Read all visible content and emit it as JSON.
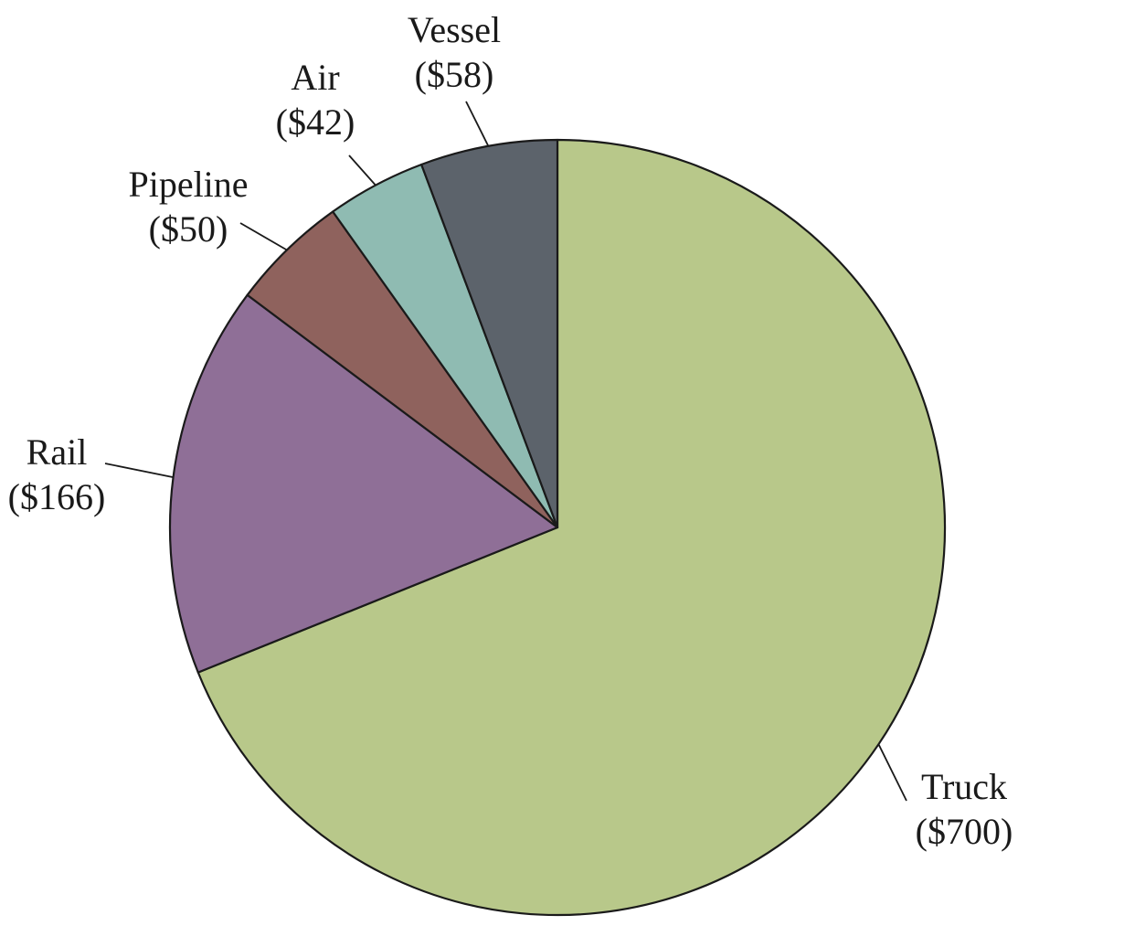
{
  "chart_data": {
    "type": "pie",
    "title": "",
    "start": "12 o'clock",
    "direction": "clockwise",
    "slices": [
      {
        "name": "Truck",
        "value": 700,
        "value_label": "($700)",
        "color": "#b8c88a"
      },
      {
        "name": "Rail",
        "value": 166,
        "value_label": "($166)",
        "color": "#8f6f97"
      },
      {
        "name": "Pipeline",
        "value": 50,
        "value_label": "($50)",
        "color": "#8f625d"
      },
      {
        "name": "Air",
        "value": 42,
        "value_label": "($42)",
        "color": "#8fbbb2"
      },
      {
        "name": "Vessel",
        "value": 58,
        "value_label": "($58)",
        "color": "#5c636b"
      }
    ]
  }
}
